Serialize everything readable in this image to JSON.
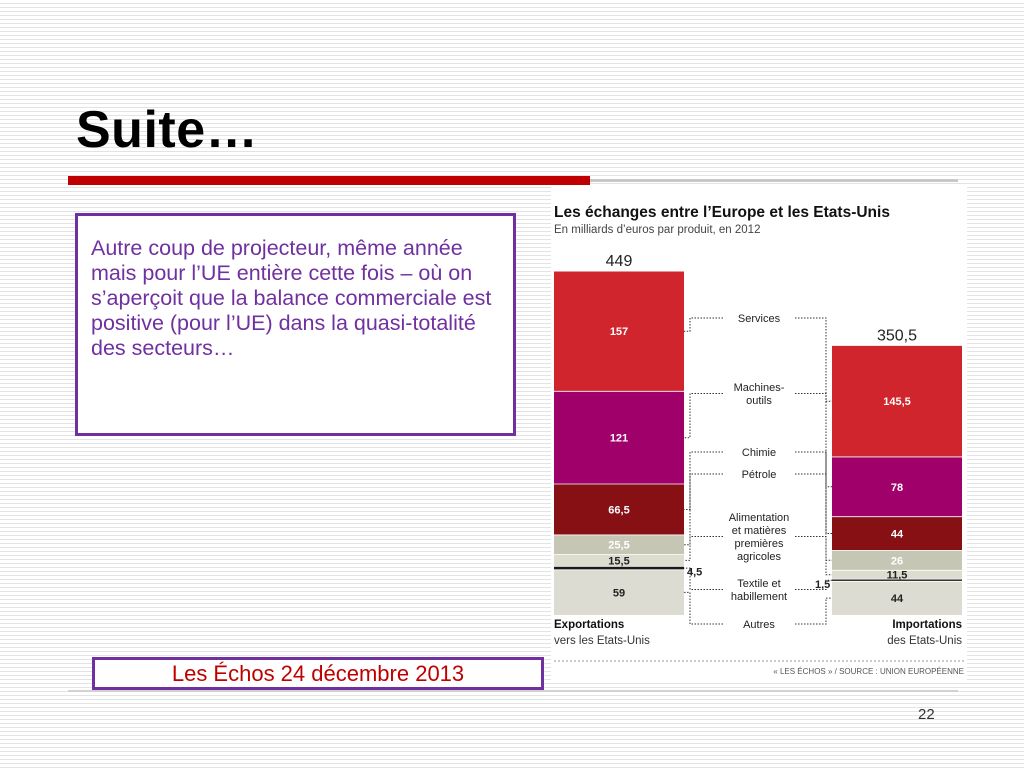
{
  "slide": {
    "title": "Suite…",
    "text": "Autre coup de projecteur, même année mais pour l’UE entière cette fois – où on s’aperçoit que la balance commerciale est positive (pour l’UE) dans la quasi-totalité des secteurs…",
    "source": "Les Échos 24 décembre 2013",
    "page_number": "22"
  },
  "colors": {
    "services": "#d0252c",
    "machines": "#a0006a",
    "chimie": "#871015",
    "petrole": "#c5c6b4",
    "alimentation": "#dddccf",
    "textile": "#1a1a1a",
    "autres": "#dcdcd2",
    "title_red": "#c00000",
    "accent_purple": "#7030a0"
  },
  "chart_data": {
    "type": "stacked-bar",
    "title": "Les échanges entre l’Europe et les Etats-Unis",
    "subtitle": "En milliards d’euros par produit, en 2012",
    "credit": "« LES ÉCHOS » / SOURCE : UNION EUROPÉENNE",
    "bars": [
      {
        "label_bold": "Exportations",
        "label_sub": "vers les Etats-Unis",
        "total": 449,
        "total_label": "449",
        "segments": [
          {
            "category": "Services",
            "value": 157,
            "label": "157"
          },
          {
            "category": "Machines-outils",
            "value": 121,
            "label": "121"
          },
          {
            "category": "Chimie",
            "value": 66.5,
            "label": "66,5"
          },
          {
            "category": "Pétrole",
            "value": 25.5,
            "label": "25,5"
          },
          {
            "category": "Alimentation et matières premières agricoles",
            "value": 15.5,
            "label": "15,5"
          },
          {
            "category": "Textile et habillement",
            "value": 4.5,
            "label": "4,5"
          },
          {
            "category": "Autres",
            "value": 59,
            "label": "59"
          }
        ]
      },
      {
        "label_bold": "Importations",
        "label_sub": "des Etats-Unis",
        "total": 350.5,
        "total_label": "350,5",
        "segments": [
          {
            "category": "Services",
            "value": 145.5,
            "label": "145,5"
          },
          {
            "category": "Machines-outils",
            "value": 78,
            "label": "78"
          },
          {
            "category": "Chimie",
            "value": 44,
            "label": "44"
          },
          {
            "category": "Pétrole",
            "value": 26,
            "label": "26"
          },
          {
            "category": "Alimentation et matières premières agricoles",
            "value": 11.5,
            "label": "11,5"
          },
          {
            "category": "Textile et habillement",
            "value": 1.5,
            "label": "1,5"
          },
          {
            "category": "Autres",
            "value": 44,
            "label": "44"
          }
        ]
      }
    ],
    "categories": [
      {
        "key": "services",
        "lines": [
          "Services"
        ]
      },
      {
        "key": "machines",
        "lines": [
          "Machines-",
          "outils"
        ]
      },
      {
        "key": "chimie",
        "lines": [
          "Chimie"
        ]
      },
      {
        "key": "petrole",
        "lines": [
          "Pétrole"
        ]
      },
      {
        "key": "alimentation",
        "lines": [
          "Alimentation",
          "et matières",
          "premières",
          "agricoles"
        ]
      },
      {
        "key": "textile",
        "lines": [
          "Textile et",
          "habillement"
        ]
      },
      {
        "key": "autres",
        "lines": [
          "Autres"
        ]
      }
    ]
  }
}
